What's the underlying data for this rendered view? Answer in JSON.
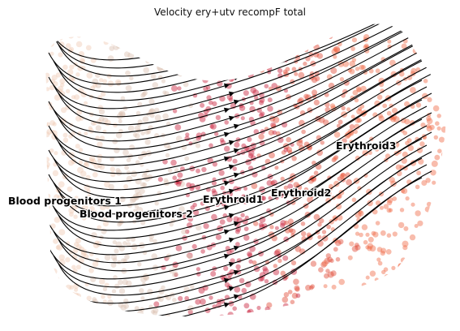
{
  "figure": {
    "title": "Velocity ery+utv recompF total",
    "clusters": [
      {
        "label": "Blood progenitors 1",
        "color": "#efc9b3"
      },
      {
        "label": "Blood progenitors 2",
        "color": "#dcc0b2"
      },
      {
        "label": "Erythroid1",
        "color": "#c81e3a"
      },
      {
        "label": "Erythroid2",
        "color": "#e04a35"
      },
      {
        "label": "Erythroid3",
        "color": "#f06a48"
      }
    ],
    "streamline_color": "#000000",
    "axes_visible": false
  }
}
